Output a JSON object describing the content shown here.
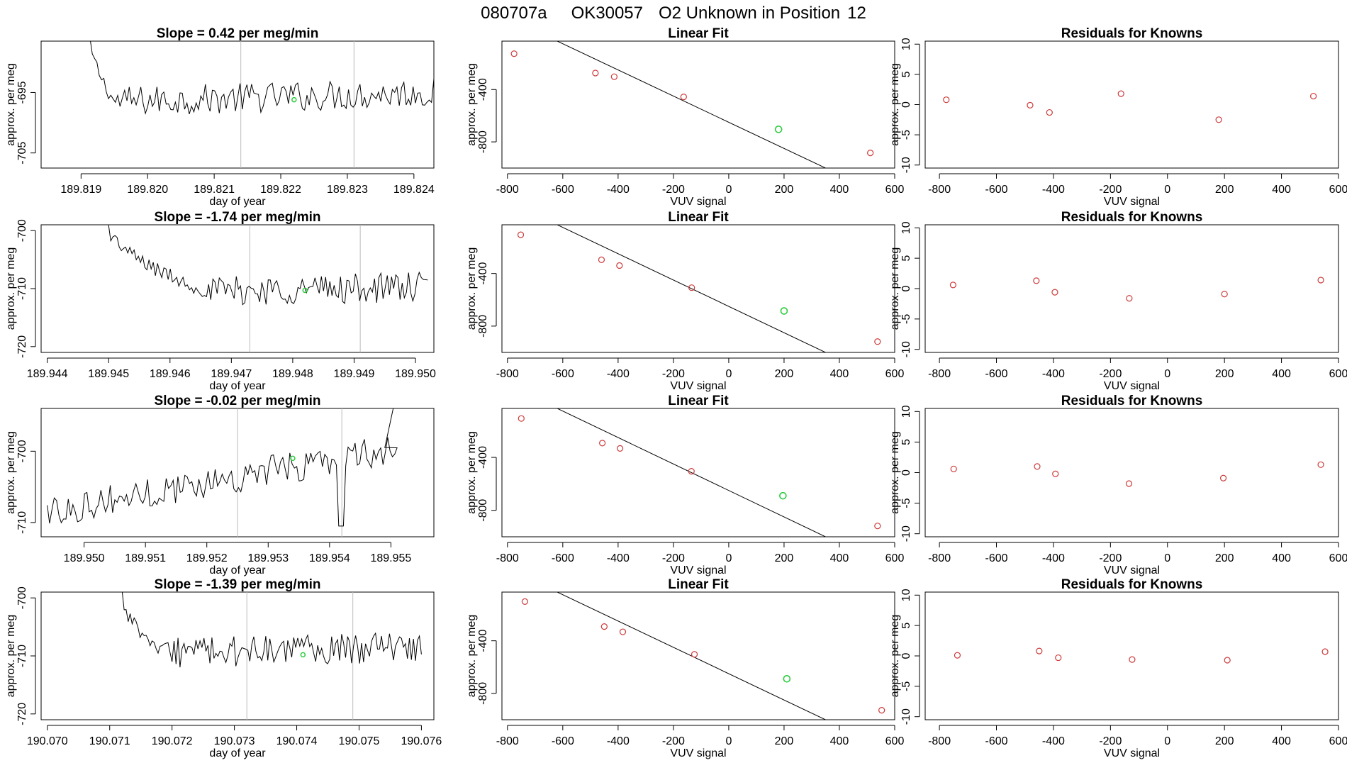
{
  "figure": {
    "title": {
      "run": "080707a",
      "tank": "OK30057",
      "label": "O2 Unknown in Position",
      "position": "12"
    }
  },
  "colors": {
    "axis": "#000000",
    "series_line": "#000000",
    "known_points": "#cd3a3a",
    "unknown_points": "#2ecc40",
    "vertical_markers": "#bbbbbb"
  },
  "chart_data": [
    {
      "type": "line",
      "row": 1,
      "col": 1,
      "title": {
        "prefix": "Slope = ",
        "value": "0.42",
        "suffix": " per meg/min"
      },
      "xlabel": "day of year",
      "ylabel": "approx. per meg",
      "xlim": [
        189.8184,
        189.8243
      ],
      "ylim": [
        -707.5,
        -686.5
      ],
      "xticks": [
        189.819,
        189.82,
        189.821,
        189.822,
        189.823,
        189.824
      ],
      "xtick_labels": [
        "189.819",
        "189.820",
        "189.821",
        "189.822",
        "189.823",
        "189.824"
      ],
      "yticks": [
        -695,
        -705
      ],
      "ytick_labels": [
        "-695",
        "-705"
      ],
      "x_start": 189.8191,
      "x_end": 189.8243,
      "start_y": -684.5,
      "drop_end_x": 189.8195,
      "level_y": -696.5,
      "trend": 1.5,
      "noise": 2.5,
      "markers": [
        189.8214,
        189.8231
      ],
      "highlight": {
        "x": 189.8222,
        "y": -696.2
      }
    },
    {
      "type": "scatter",
      "row": 1,
      "col": 2,
      "title": "Linear Fit",
      "xlabel": "VUV signal",
      "ylabel": "approx. per meg",
      "xlim": [
        -820,
        600
      ],
      "ylim": [
        -1000,
        -30
      ],
      "xticks": [
        -800,
        -600,
        -400,
        -200,
        0,
        200,
        400,
        600
      ],
      "xtick_labels": [
        "-800",
        "-600",
        "-400",
        "-200",
        "0",
        "200",
        "400",
        "600"
      ],
      "yticks": [
        -400,
        -800
      ],
      "ytick_labels": [
        "-400",
        "-800"
      ],
      "fit": {
        "slope": -1.0,
        "intercept": -650,
        "x_from": -800,
        "x_to": 555
      },
      "known": [
        [
          -776,
          -126
        ],
        [
          -482,
          -274
        ],
        [
          -414,
          -302
        ],
        [
          -163,
          -456
        ],
        [
          512,
          -884
        ]
      ],
      "unknown": [
        [
          180,
          -704
        ]
      ]
    },
    {
      "type": "scatter",
      "row": 1,
      "col": 3,
      "title": "Residuals for Knowns",
      "xlabel": "VUV signal",
      "ylabel": "approx. per meg",
      "xlim": [
        -850,
        600
      ],
      "ylim": [
        -10.5,
        10.5
      ],
      "xticks": [
        -800,
        -600,
        -400,
        -200,
        0,
        200,
        400,
        600
      ],
      "xtick_labels": [
        "-800",
        "-600",
        "-400",
        "-200",
        "0",
        "200",
        "400",
        "600"
      ],
      "yticks": [
        10,
        5,
        0,
        -5,
        -10
      ],
      "ytick_labels": [
        "10",
        "5",
        "0",
        "-5",
        "-10"
      ],
      "known": [
        [
          -776,
          0.8
        ],
        [
          -482,
          -0.1
        ],
        [
          -414,
          -1.3
        ],
        [
          -163,
          1.8
        ],
        [
          180,
          -2.5
        ],
        [
          512,
          1.4
        ]
      ],
      "unknown": []
    },
    {
      "type": "line",
      "row": 2,
      "col": 1,
      "title": {
        "prefix": "Slope = ",
        "value": "-1.74",
        "suffix": " per meg/min"
      },
      "xlabel": "day of year",
      "ylabel": "approx. per meg",
      "xlim": [
        189.9439,
        189.9503
      ],
      "ylim": [
        -721,
        -699
      ],
      "xticks": [
        189.944,
        189.945,
        189.946,
        189.947,
        189.948,
        189.949,
        189.95
      ],
      "xtick_labels": [
        "189.944",
        "189.945",
        "189.946",
        "189.947",
        "189.948",
        "189.949",
        "189.950"
      ],
      "yticks": [
        -700,
        -710,
        -720
      ],
      "ytick_labels": [
        "-700",
        "-710",
        "-720"
      ],
      "x_start": 189.945,
      "x_end": 189.9502,
      "start_y": -699.5,
      "drop_end_x": 189.9466,
      "level_y": -710.5,
      "trend": 0.8,
      "noise": 2.6,
      "markers": [
        189.9473,
        189.9491
      ],
      "highlight": {
        "x": 189.9482,
        "y": -710.3
      }
    },
    {
      "type": "scatter",
      "row": 2,
      "col": 2,
      "title": "Linear Fit",
      "xlabel": "VUV signal",
      "ylabel": "approx. per meg",
      "xlim": [
        -820,
        600
      ],
      "ylim": [
        -1000,
        -30
      ],
      "xticks": [
        -800,
        -600,
        -400,
        -200,
        0,
        200,
        400,
        600
      ],
      "xtick_labels": [
        "-800",
        "-600",
        "-400",
        "-200",
        "0",
        "200",
        "400",
        "600"
      ],
      "yticks": [
        -400,
        -800
      ],
      "ytick_labels": [
        "-400",
        "-800"
      ],
      "fit": {
        "slope": -1.0,
        "intercept": -650,
        "x_from": -800,
        "x_to": 555
      },
      "known": [
        [
          -752,
          -106
        ],
        [
          -460,
          -296
        ],
        [
          -395,
          -340
        ],
        [
          -134,
          -508
        ],
        [
          538,
          -918
        ]
      ],
      "unknown": [
        [
          200,
          -685
        ]
      ]
    },
    {
      "type": "scatter",
      "row": 2,
      "col": 3,
      "title": "Residuals for Knowns",
      "xlabel": "VUV signal",
      "ylabel": "approx. per meg",
      "xlim": [
        -850,
        600
      ],
      "ylim": [
        -10.5,
        10.5
      ],
      "xticks": [
        -800,
        -600,
        -400,
        -200,
        0,
        200,
        400,
        600
      ],
      "xtick_labels": [
        "-800",
        "-600",
        "-400",
        "-200",
        "0",
        "200",
        "400",
        "600"
      ],
      "yticks": [
        10,
        5,
        0,
        -5,
        -10
      ],
      "ytick_labels": [
        "10",
        "5",
        "0",
        "-5",
        "-10"
      ],
      "known": [
        [
          -752,
          0.6
        ],
        [
          -460,
          1.3
        ],
        [
          -395,
          -0.6
        ],
        [
          -134,
          -1.6
        ],
        [
          200,
          -0.9
        ],
        [
          538,
          1.4
        ]
      ],
      "unknown": []
    },
    {
      "type": "line",
      "row": 3,
      "col": 1,
      "title": {
        "prefix": "Slope = ",
        "value": "-0.02",
        "suffix": " per meg/min"
      },
      "xlabel": "day of year",
      "ylabel": "approx. per meg",
      "xlim": [
        189.9493,
        189.9557
      ],
      "ylim": [
        -712,
        -694
      ],
      "xticks": [
        189.95,
        189.951,
        189.952,
        189.953,
        189.954,
        189.955
      ],
      "xtick_labels": [
        "189.950",
        "189.951",
        "189.952",
        "189.953",
        "189.954",
        "189.955"
      ],
      "yticks": [
        -700,
        -710
      ],
      "ytick_labels": [
        "-700",
        "-710"
      ],
      "x_start": 189.9494,
      "x_end": 189.9551,
      "start_y": -708.5,
      "drop_end_x": 189.9494,
      "level_y": -708.5,
      "trend": 9.0,
      "noise": 2.2,
      "markers": [
        189.9525,
        189.9542
      ],
      "dip": {
        "x": 189.9542,
        "y": -710.5
      },
      "spike": {
        "from_x": 189.9549,
        "to_x": 189.95505,
        "to_y": -693.5
      },
      "highlight": {
        "x": 189.9534,
        "y": -701
      }
    },
    {
      "type": "scatter",
      "row": 3,
      "col": 2,
      "title": "Linear Fit",
      "xlabel": "VUV signal",
      "ylabel": "approx. per meg",
      "xlim": [
        -820,
        600
      ],
      "ylim": [
        -1000,
        -30
      ],
      "xticks": [
        -800,
        -600,
        -400,
        -200,
        0,
        200,
        400,
        600
      ],
      "xtick_labels": [
        "-800",
        "-600",
        "-400",
        "-200",
        "0",
        "200",
        "400",
        "600"
      ],
      "yticks": [
        -400,
        -800
      ],
      "ytick_labels": [
        "-400",
        "-800"
      ],
      "fit": {
        "slope": -1.0,
        "intercept": -650,
        "x_from": -800,
        "x_to": 555
      },
      "known": [
        [
          -750,
          -106
        ],
        [
          -457,
          -292
        ],
        [
          -393,
          -332
        ],
        [
          -135,
          -505
        ],
        [
          538,
          -918
        ]
      ],
      "unknown": [
        [
          196,
          -690
        ]
      ]
    },
    {
      "type": "scatter",
      "row": 3,
      "col": 3,
      "title": "Residuals for Knowns",
      "xlabel": "VUV signal",
      "ylabel": "approx. per meg",
      "xlim": [
        -850,
        600
      ],
      "ylim": [
        -10.5,
        10.5
      ],
      "xticks": [
        -800,
        -600,
        -400,
        -200,
        0,
        200,
        400,
        600
      ],
      "xtick_labels": [
        "-800",
        "-600",
        "-400",
        "-200",
        "0",
        "200",
        "400",
        "600"
      ],
      "yticks": [
        10,
        5,
        0,
        -5,
        -10
      ],
      "ytick_labels": [
        "10",
        "5",
        "0",
        "-5",
        "-10"
      ],
      "known": [
        [
          -750,
          0.6
        ],
        [
          -457,
          1.0
        ],
        [
          -393,
          -0.2
        ],
        [
          -135,
          -1.8
        ],
        [
          196,
          -0.9
        ],
        [
          538,
          1.3
        ]
      ],
      "unknown": []
    },
    {
      "type": "line",
      "row": 4,
      "col": 1,
      "title": {
        "prefix": "Slope = ",
        "value": "-1.39",
        "suffix": " per meg/min"
      },
      "xlabel": "day of year",
      "ylabel": "approx. per meg",
      "xlim": [
        190.0699,
        190.0762
      ],
      "ylim": [
        -721,
        -699
      ],
      "xticks": [
        190.07,
        190.071,
        190.072,
        190.073,
        190.074,
        190.075,
        190.076
      ],
      "xtick_labels": [
        "190.070",
        "190.071",
        "190.072",
        "190.073",
        "190.074",
        "190.075",
        "190.076"
      ],
      "yticks": [
        -700,
        -710,
        -720
      ],
      "ytick_labels": [
        "-700",
        "-710",
        "-720"
      ],
      "x_start": 190.0712,
      "x_end": 190.076,
      "start_y": -699.5,
      "drop_end_x": 190.0718,
      "level_y": -709.5,
      "trend": 1.0,
      "noise": 2.6,
      "markers": [
        190.0732,
        190.0749
      ],
      "highlight": {
        "x": 190.0741,
        "y": -709.8
      }
    },
    {
      "type": "scatter",
      "row": 4,
      "col": 2,
      "title": "Linear Fit",
      "xlabel": "VUV signal",
      "ylabel": "approx. per meg",
      "xlim": [
        -820,
        600
      ],
      "ylim": [
        -1000,
        -30
      ],
      "xticks": [
        -800,
        -600,
        -400,
        -200,
        0,
        200,
        400,
        600
      ],
      "xtick_labels": [
        "-800",
        "-600",
        "-400",
        "-200",
        "0",
        "200",
        "400",
        "600"
      ],
      "yticks": [
        -400,
        -800
      ],
      "ytick_labels": [
        "-400",
        "-800"
      ],
      "fit": {
        "slope": -1.0,
        "intercept": -650,
        "x_from": -800,
        "x_to": 560
      },
      "known": [
        [
          -737,
          -102
        ],
        [
          -450,
          -292
        ],
        [
          -383,
          -332
        ],
        [
          -124,
          -503
        ],
        [
          553,
          -928
        ]
      ],
      "unknown": [
        [
          210,
          -689
        ]
      ]
    },
    {
      "type": "scatter",
      "row": 4,
      "col": 3,
      "title": "Residuals for Knowns",
      "xlabel": "VUV signal",
      "ylabel": "approx. per meg",
      "xlim": [
        -850,
        600
      ],
      "ylim": [
        -10.5,
        10.5
      ],
      "xticks": [
        -800,
        -600,
        -400,
        -200,
        0,
        200,
        400,
        600
      ],
      "xtick_labels": [
        "-800",
        "-600",
        "-400",
        "-200",
        "0",
        "200",
        "400",
        "600"
      ],
      "yticks": [
        10,
        5,
        0,
        -5,
        -10
      ],
      "ytick_labels": [
        "10",
        "5",
        "0",
        "-5",
        "-10"
      ],
      "known": [
        [
          -737,
          0.1
        ],
        [
          -450,
          0.8
        ],
        [
          -383,
          -0.3
        ],
        [
          -124,
          -0.6
        ],
        [
          210,
          -0.7
        ],
        [
          553,
          0.7
        ]
      ],
      "unknown": []
    }
  ]
}
